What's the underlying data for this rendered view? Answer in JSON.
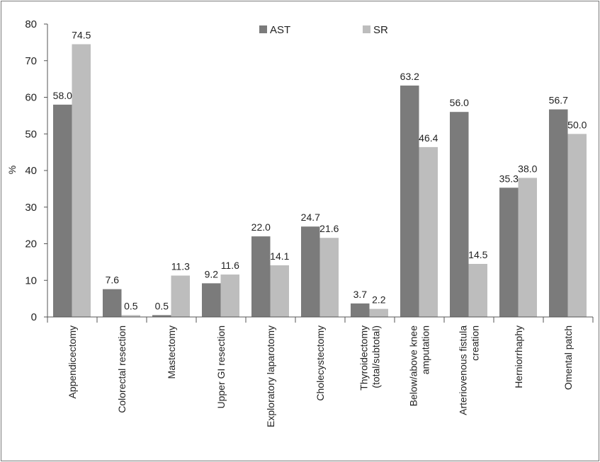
{
  "chart_data": {
    "type": "bar",
    "title": "",
    "xlabel": "",
    "ylabel": "%",
    "ylim": [
      0,
      80
    ],
    "yticks": [
      0,
      10,
      20,
      30,
      40,
      50,
      60,
      70,
      80
    ],
    "grid": false,
    "legend_position": "top",
    "categories": [
      "Appendicectomy",
      "Colorectal resection",
      "Mastectomy",
      "Upper GI resection",
      "Exploratory laparotomy",
      "Cholecystectomy",
      "Thyroidectomy (total/subtotal)",
      "Below/above knee amputation",
      "Arteriovenous fistula creation",
      "Herniorrhaphy",
      "Omental patch"
    ],
    "category_lines": [
      [
        "Appendicectomy"
      ],
      [
        "Colorectal resection"
      ],
      [
        "Mastectomy"
      ],
      [
        "Upper GI resection"
      ],
      [
        "Exploratory laparotomy"
      ],
      [
        "Cholecystectomy"
      ],
      [
        "Thyroidectomy",
        "(total/subtotal)"
      ],
      [
        "Below/above knee",
        "amputation"
      ],
      [
        "Arteriovenous fistula",
        "creation"
      ],
      [
        "Herniorrhaphy"
      ],
      [
        "Omental patch"
      ]
    ],
    "series": [
      {
        "name": "AST",
        "color": "#7b7b7b",
        "values": [
          58.0,
          7.6,
          0.5,
          9.2,
          22.0,
          24.7,
          3.7,
          63.2,
          56.0,
          35.3,
          56.7
        ],
        "labels": [
          "58.0",
          "7.6",
          "0.5",
          "9.2",
          "22.0",
          "24.7",
          "3.7",
          "63.2",
          "56.0",
          "35.3",
          "56.7"
        ]
      },
      {
        "name": "SR",
        "color": "#bdbdbd",
        "values": [
          74.5,
          0.5,
          11.3,
          11.6,
          14.1,
          21.6,
          2.2,
          46.4,
          14.5,
          38.0,
          50.0
        ],
        "labels": [
          "74.5",
          "0.5",
          "11.3",
          "11.6",
          "14.1",
          "21.6",
          "2.2",
          "46.4",
          "14.5",
          "38.0",
          "50.0"
        ]
      }
    ]
  }
}
